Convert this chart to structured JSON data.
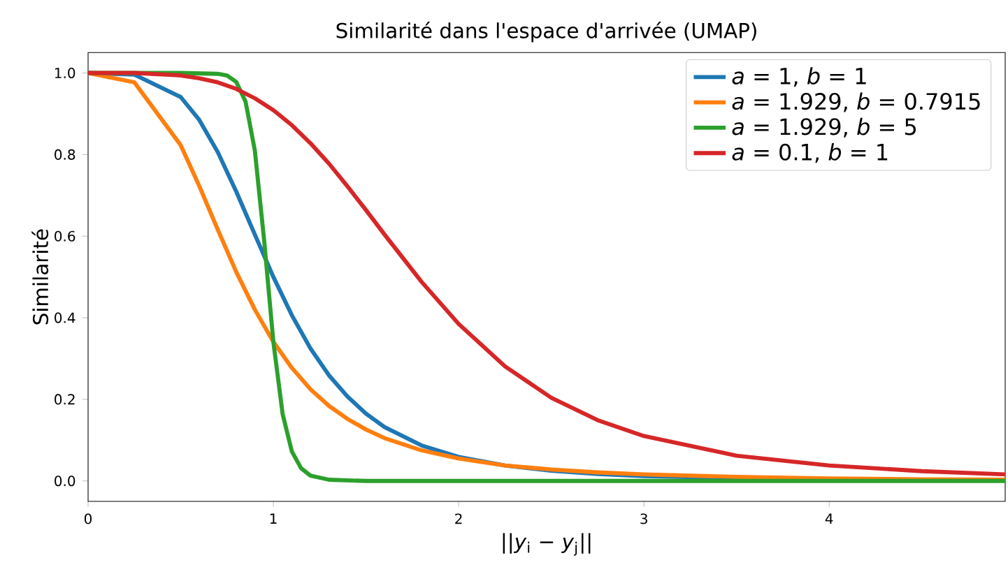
{
  "chart_data": {
    "type": "line",
    "title": "Similarité dans l'espace d'arrivée (UMAP)",
    "xlabel": "||*y*$_{i}$ − *y*$_{j}$||",
    "ylabel": "Similarité",
    "xlim": [
      0,
      4.95
    ],
    "ylim": [
      -0.05,
      1.05
    ],
    "xticks": [
      0,
      1,
      2,
      3,
      4
    ],
    "yticks": [
      {
        "value": 0,
        "label": "0.0"
      },
      {
        "value": 0.2,
        "label": "0.2"
      },
      {
        "value": 0.4,
        "label": "0.4"
      },
      {
        "value": 0.6,
        "label": "0.6"
      },
      {
        "value": 0.8,
        "label": "0.8"
      },
      {
        "value": 1.0,
        "label": "1.0"
      }
    ],
    "legend": "top right",
    "grid": false,
    "marker": "none",
    "line_style": "solid",
    "series": [
      {
        "name": "*a* = 1, *b* = 1",
        "color": "#1f77b4",
        "x": [
          0,
          0.25,
          0.5,
          0.6,
          0.7,
          0.8,
          0.9,
          1,
          1.1,
          1.2,
          1.3,
          1.4,
          1.5,
          1.6,
          1.8,
          2,
          2.25,
          2.5,
          2.75,
          3,
          3.5,
          4
        ],
        "values": [
          1,
          0.996,
          0.941,
          0.885,
          0.806,
          0.709,
          0.604,
          0.5,
          0.406,
          0.325,
          0.259,
          0.207,
          0.165,
          0.132,
          0.087,
          0.059,
          0.038,
          0.025,
          0.017,
          0.012,
          0.007,
          0.004
        ]
      },
      {
        "name": "*a* = 1.929, *b* = 0.7915",
        "color": "#ff7f0e",
        "x": [
          0,
          0.25,
          0.5,
          0.6,
          0.7,
          0.8,
          0.9,
          1,
          1.1,
          1.2,
          1.3,
          1.4,
          1.5,
          1.6,
          1.8,
          2,
          2.25,
          2.5,
          2.75,
          3,
          3.5,
          4,
          4.5,
          4.95
        ],
        "values": [
          1,
          0.977,
          0.823,
          0.723,
          0.616,
          0.512,
          0.42,
          0.341,
          0.277,
          0.225,
          0.184,
          0.152,
          0.126,
          0.105,
          0.075,
          0.055,
          0.038,
          0.028,
          0.021,
          0.016,
          0.01,
          0.006,
          0.004,
          0.003
        ]
      },
      {
        "name": "*a* = 1.929, *b* = 5",
        "color": "#2ca02c",
        "x": [
          0,
          0.5,
          0.7,
          0.75,
          0.8,
          0.85,
          0.9,
          0.95,
          1,
          1.05,
          1.1,
          1.15,
          1.2,
          1.3,
          1.5,
          2,
          3,
          4,
          4.95
        ],
        "values": [
          1,
          1,
          0.998,
          0.994,
          0.978,
          0.93,
          0.81,
          0.591,
          0.341,
          0.164,
          0.072,
          0.031,
          0.013,
          0.003,
          0,
          0,
          0,
          0,
          0
        ]
      },
      {
        "name": "*a* = 0.1, *b* = 1",
        "color": "#d62728",
        "x": [
          0,
          0.25,
          0.5,
          0.6,
          0.7,
          0.8,
          0.9,
          1,
          1.1,
          1.2,
          1.3,
          1.4,
          1.5,
          1.6,
          1.8,
          2,
          2.25,
          2.5,
          2.75,
          3,
          3.5,
          4,
          4.5,
          4.95
        ],
        "values": [
          1,
          1,
          0.994,
          0.987,
          0.977,
          0.961,
          0.938,
          0.909,
          0.872,
          0.828,
          0.778,
          0.722,
          0.664,
          0.604,
          0.488,
          0.385,
          0.281,
          0.204,
          0.149,
          0.11,
          0.062,
          0.038,
          0.024,
          0.016
        ]
      }
    ]
  }
}
